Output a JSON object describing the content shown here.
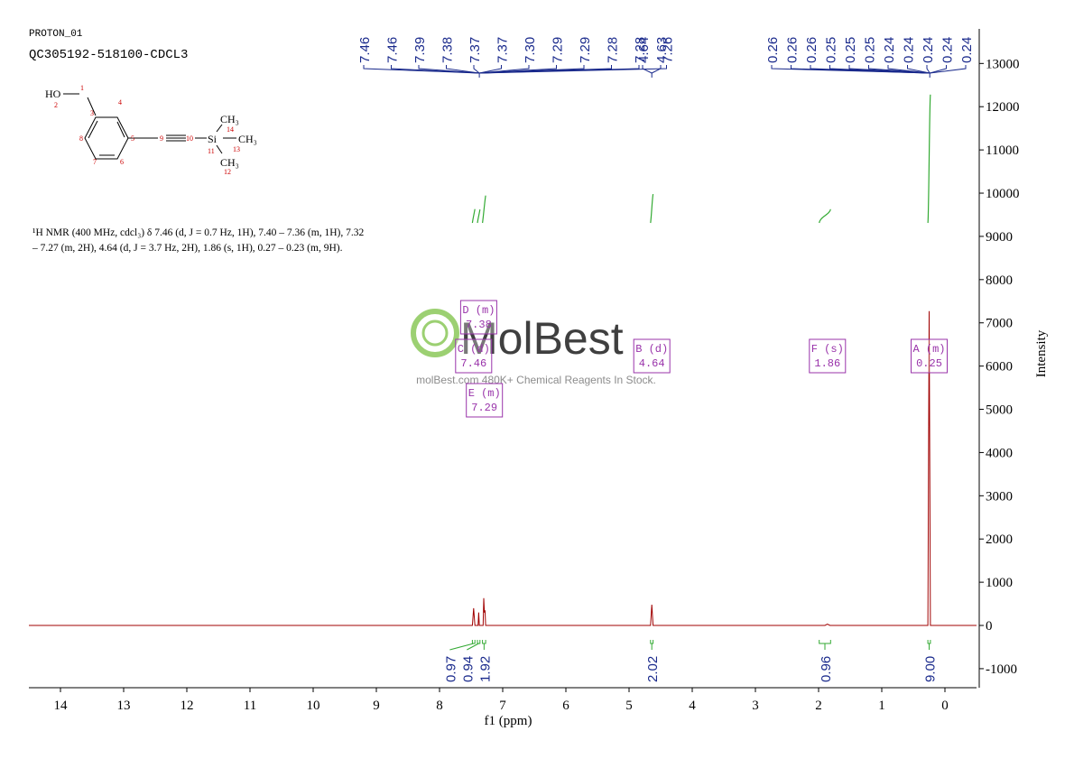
{
  "header": {
    "experiment": "PROTON_01",
    "sample": "QC305192-518100-CDCL3"
  },
  "structure": {
    "atoms": [
      "HO",
      "1",
      "2",
      "3",
      "4",
      "5",
      "6",
      "7",
      "8",
      "9",
      "10",
      "Si",
      "11",
      "12",
      "13",
      "14",
      "CH₃",
      "CH₃",
      "CH₃"
    ]
  },
  "description": "¹H NMR (400 MHz, cdcl₃) δ 7.46 (d, J = 0.7 Hz, 1H), 7.40 – 7.36 (m, 1H), 7.32 – 7.27 (m, 2H), 4.64 (d, J = 3.7 Hz, 2H), 1.86 (s, 1H), 0.27 – 0.23 (m, 9H).",
  "watermark": {
    "brand": "MolBest",
    "tagline": "molBest.com 480K+ Chemical Reagents In Stock."
  },
  "chart_data": {
    "type": "spectrum",
    "color": "#a00000",
    "integral_color": "#33aa33",
    "label_color": "#1a2a8c",
    "box_color": "#9933aa",
    "x_label": "f1 (ppm)",
    "y_label": "Intensity",
    "xlim": [
      14.5,
      -0.5
    ],
    "xticks": [
      14,
      13,
      12,
      11,
      10,
      9,
      8,
      7,
      6,
      5,
      4,
      3,
      2,
      1,
      0
    ],
    "ylim": [
      -1440,
      13800
    ],
    "yticks": [
      13000,
      12000,
      11000,
      10000,
      9000,
      8000,
      7000,
      6000,
      5000,
      4000,
      3000,
      2000,
      1000,
      0,
      -1000
    ],
    "x": [
      14.5,
      7.48,
      7.46,
      7.44,
      7.39,
      7.38,
      7.37,
      7.31,
      7.3,
      7.29,
      7.28,
      7.27,
      4.66,
      4.64,
      4.62,
      1.9,
      1.86,
      1.82,
      0.27,
      0.25,
      0.23,
      -0.5
    ],
    "values": [
      0,
      0,
      400,
      0,
      0,
      300,
      0,
      0,
      630,
      300,
      350,
      0,
      0,
      480,
      0,
      0,
      30,
      0,
      0,
      7270,
      0,
      0
    ],
    "peak_labels": [
      {
        "ppm": 7.37,
        "labels": [
          "7.46",
          "7.46",
          "7.39",
          "7.38",
          "7.37",
          "7.37",
          "7.30",
          "7.29",
          "7.29",
          "7.28",
          "7.28",
          "7.26"
        ]
      },
      {
        "ppm": 4.64,
        "labels": [
          "4.64",
          "4.63"
        ]
      },
      {
        "ppm": 0.24,
        "labels": [
          "0.26",
          "0.26",
          "0.26",
          "0.25",
          "0.25",
          "0.25",
          "0.24",
          "0.24",
          "0.24",
          "0.24",
          "0.24"
        ]
      }
    ],
    "integrals": {
      "ranges": [
        [
          7.48,
          7.44
        ],
        [
          7.4,
          7.36
        ],
        [
          7.32,
          7.27
        ],
        [
          4.66,
          4.62
        ],
        [
          1.99,
          1.81
        ],
        [
          0.27,
          0.23
        ]
      ],
      "values": [
        0.97,
        0.94,
        1.92,
        2.02,
        0.96,
        9
      ],
      "value_labels": [
        "0.97",
        "0.94",
        "1.92",
        "2.02",
        "0.96",
        "9.00"
      ]
    },
    "multiplets": [
      {
        "name": "A (m)",
        "shift": 0.25
      },
      {
        "name": "B (d)",
        "shift": 4.64
      },
      {
        "name": "C (d)",
        "shift": 7.46
      },
      {
        "name": "D (m)",
        "shift": 7.38
      },
      {
        "name": "E (m)",
        "shift": 7.29
      },
      {
        "name": "F (s)",
        "shift": 1.86
      }
    ]
  }
}
